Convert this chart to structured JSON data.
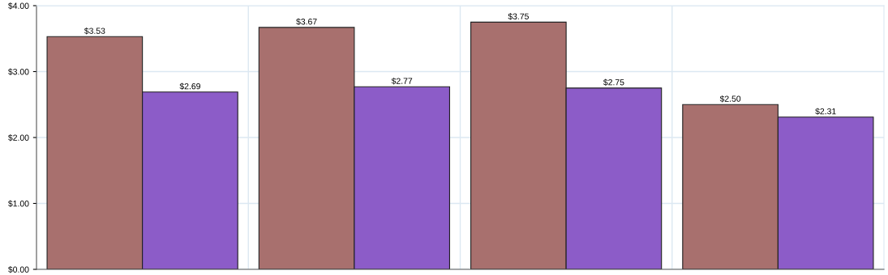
{
  "chart_data": {
    "type": "bar",
    "categories": [
      null,
      null,
      null,
      null
    ],
    "series": [
      {
        "color": "#a8706e",
        "values": [
          3.53,
          3.67,
          3.75,
          2.5
        ],
        "value_labels": [
          "$3.53",
          "$3.67",
          "$3.75",
          "$2.50"
        ]
      },
      {
        "color": "#8c5cc8",
        "values": [
          2.69,
          2.77,
          2.75,
          2.31
        ],
        "value_labels": [
          "$2.69",
          "$2.77",
          "$2.75",
          "$2.31"
        ]
      }
    ],
    "ylim": [
      0,
      4
    ],
    "yticks": [
      {
        "value": 0,
        "label": "$0.00"
      },
      {
        "value": 1,
        "label": "$1.00"
      },
      {
        "value": 2,
        "label": "$2.00"
      },
      {
        "value": 3,
        "label": "$3.00"
      },
      {
        "value": 4,
        "label": "$4.00"
      }
    ],
    "tick_labels": "y",
    "grid": true,
    "legend": false
  }
}
